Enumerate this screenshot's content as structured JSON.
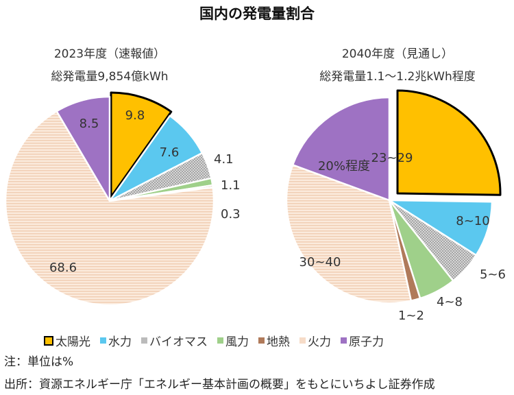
{
  "title": "国内の発電量割合",
  "chart_data": [
    {
      "type": "pie",
      "title": "2023年度（速報値）",
      "subtitle": "総発電量9,854億kWh",
      "exploded": "太陽光",
      "slices": [
        {
          "name": "太陽光",
          "value": 9.8,
          "label": "9.8"
        },
        {
          "name": "水力",
          "value": 7.6,
          "label": "7.6"
        },
        {
          "name": "バイオマス",
          "value": 4.1,
          "label": "4.1"
        },
        {
          "name": "風力",
          "value": 1.1,
          "label": "1.1"
        },
        {
          "name": "地熱",
          "value": 0.3,
          "label": "0.3"
        },
        {
          "name": "火力",
          "value": 68.6,
          "label": "68.6"
        },
        {
          "name": "原子力",
          "value": 8.5,
          "label": "8.5"
        }
      ]
    },
    {
      "type": "pie",
      "title": "2040年度（見通し）",
      "subtitle": "総発電量1.1～1.2兆kWh程度",
      "exploded": "太陽光",
      "slices": [
        {
          "name": "太陽光",
          "value": [
            23,
            29
          ],
          "label": "23~29"
        },
        {
          "name": "水力",
          "value": [
            8,
            10
          ],
          "label": "8~10"
        },
        {
          "name": "バイオマス",
          "value": [
            5,
            6
          ],
          "label": "5~6"
        },
        {
          "name": "風力",
          "value": [
            4,
            8
          ],
          "label": "4~8"
        },
        {
          "name": "地熱",
          "value": [
            1,
            2
          ],
          "label": "1~2"
        },
        {
          "name": "火力",
          "value": [
            30,
            40
          ],
          "label": "30~40"
        },
        {
          "name": "原子力",
          "value": 20,
          "label": "20%程度"
        }
      ]
    }
  ],
  "legend": [
    {
      "name": "太陽光",
      "color": "#FFC000",
      "outlined": true
    },
    {
      "name": "水力",
      "color": "#5BC8EF"
    },
    {
      "name": "バイオマス",
      "color": "#BBBBBB",
      "pattern": "cross-hatch"
    },
    {
      "name": "風力",
      "color": "#9FD08A"
    },
    {
      "name": "地熱",
      "color": "#B07A5A"
    },
    {
      "name": "火力",
      "color": "#F6DCC8",
      "pattern": "horizontal-stripes"
    },
    {
      "name": "原子力",
      "color": "#9E72C3"
    }
  ],
  "note": "注：単位は%",
  "source": "出所：資源エネルギー庁「エネルギー基本計画の概要」をもとにいちよし証券作成"
}
